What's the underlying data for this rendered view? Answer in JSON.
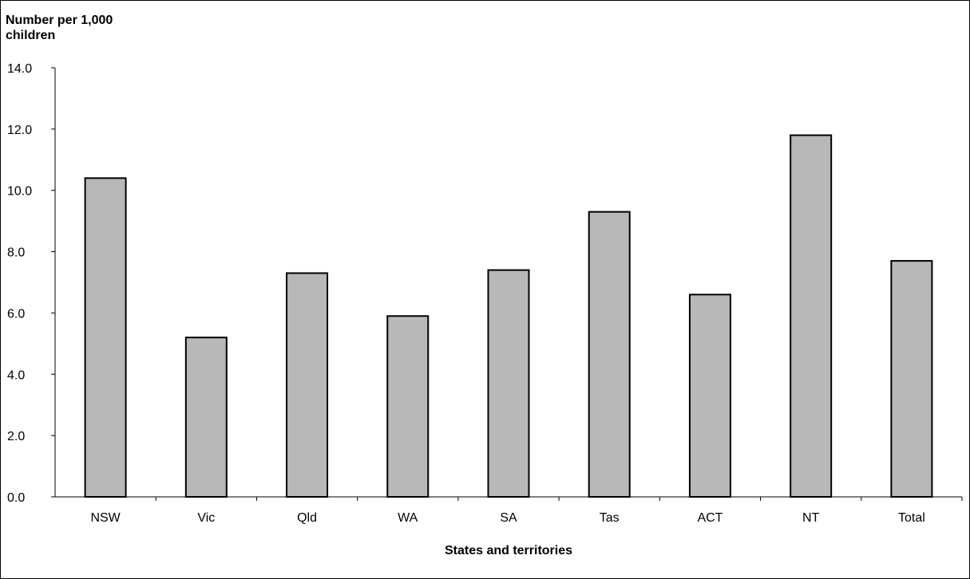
{
  "chart_data": {
    "type": "bar",
    "title": "",
    "ylabel_line1": "Number per 1,000",
    "ylabel_line2": "children",
    "xlabel": "States and territories",
    "categories": [
      "NSW",
      "Vic",
      "Qld",
      "WA",
      "SA",
      "Tas",
      "ACT",
      "NT",
      "Total"
    ],
    "values": [
      10.4,
      5.2,
      7.3,
      5.9,
      7.4,
      9.3,
      6.6,
      11.8,
      7.7
    ],
    "ylim": [
      0,
      14
    ],
    "yticks": [
      "0.0",
      "2.0",
      "4.0",
      "6.0",
      "8.0",
      "10.0",
      "12.0",
      "14.0"
    ],
    "ytick_values": [
      0,
      2,
      4,
      6,
      8,
      10,
      12,
      14
    ],
    "grid": false,
    "legend": "none",
    "bar_color": "#b8b8b8",
    "bar_edge_color": "#000000"
  }
}
